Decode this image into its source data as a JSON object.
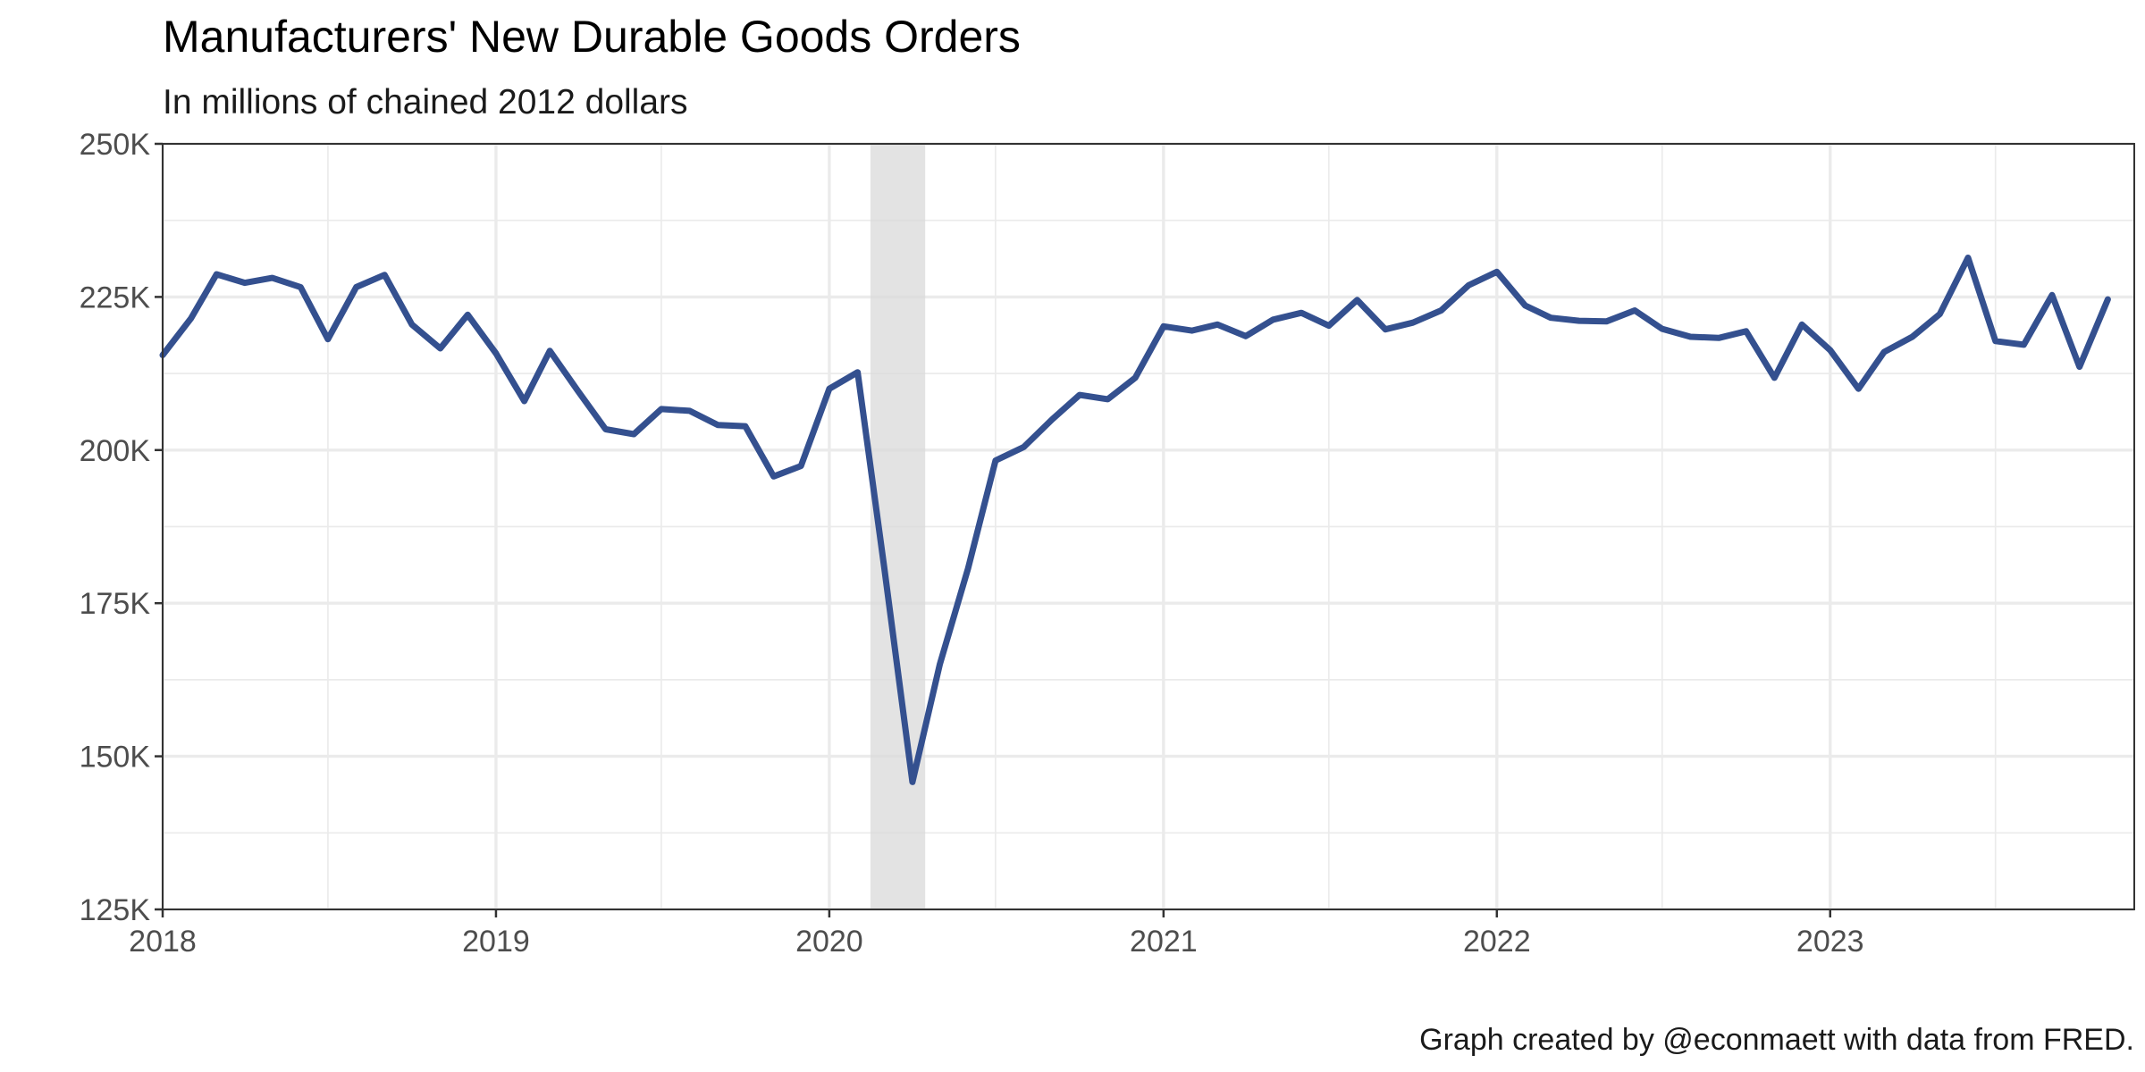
{
  "chart_data": {
    "type": "line",
    "title": "Manufacturers' New Durable Goods Orders",
    "subtitle": "In millions of chained 2012 dollars",
    "caption": "Graph created by @econmaett with data from FRED.",
    "xlabel": "",
    "ylabel": "",
    "x_range": [
      "2018-01-01",
      "2023-11-30"
    ],
    "x_ticks": [
      {
        "date": "2018-01-01",
        "label": "2018"
      },
      {
        "date": "2019-01-01",
        "label": "2019"
      },
      {
        "date": "2020-01-01",
        "label": "2020"
      },
      {
        "date": "2021-01-01",
        "label": "2021"
      },
      {
        "date": "2022-01-01",
        "label": "2022"
      },
      {
        "date": "2023-01-01",
        "label": "2023"
      }
    ],
    "x_minor_ticks": [
      "2018-07-01",
      "2019-07-01",
      "2020-07-01",
      "2021-07-01",
      "2022-07-01",
      "2023-07-01"
    ],
    "y_range": [
      125000,
      250000
    ],
    "y_ticks": [
      {
        "value": 125000,
        "label": "125K"
      },
      {
        "value": 150000,
        "label": "150K"
      },
      {
        "value": 175000,
        "label": "175K"
      },
      {
        "value": 200000,
        "label": "200K"
      },
      {
        "value": 225000,
        "label": "225K"
      },
      {
        "value": 250000,
        "label": "250K"
      }
    ],
    "y_minor_ticks": [
      137500,
      162500,
      187500,
      212500,
      237500
    ],
    "grid": true,
    "recession": {
      "start": "2020-02-15",
      "end": "2020-04-15"
    },
    "series": [
      {
        "color": "#34508f",
        "points": [
          [
            "2018-01-01",
            215500
          ],
          [
            "2018-02-01",
            221500
          ],
          [
            "2018-03-01",
            228700
          ],
          [
            "2018-04-01",
            227300
          ],
          [
            "2018-05-01",
            228100
          ],
          [
            "2018-06-01",
            226600
          ],
          [
            "2018-07-01",
            218100
          ],
          [
            "2018-08-01",
            226600
          ],
          [
            "2018-09-01",
            228600
          ],
          [
            "2018-10-01",
            220500
          ],
          [
            "2018-11-01",
            216600
          ],
          [
            "2018-12-01",
            222100
          ],
          [
            "2019-01-01",
            215800
          ],
          [
            "2019-02-01",
            208000
          ],
          [
            "2019-03-01",
            216200
          ],
          [
            "2019-04-01",
            209600
          ],
          [
            "2019-05-01",
            203400
          ],
          [
            "2019-06-01",
            202600
          ],
          [
            "2019-07-01",
            206700
          ],
          [
            "2019-08-01",
            206400
          ],
          [
            "2019-09-01",
            204100
          ],
          [
            "2019-10-01",
            203900
          ],
          [
            "2019-11-01",
            195700
          ],
          [
            "2019-12-01",
            197400
          ],
          [
            "2020-01-01",
            210000
          ],
          [
            "2020-02-01",
            212700
          ],
          [
            "2020-03-01",
            181000
          ],
          [
            "2020-04-01",
            145800
          ],
          [
            "2020-05-01",
            165000
          ],
          [
            "2020-06-01",
            180700
          ],
          [
            "2020-07-01",
            198300
          ],
          [
            "2020-08-01",
            200500
          ],
          [
            "2020-09-01",
            205000
          ],
          [
            "2020-10-01",
            209000
          ],
          [
            "2020-11-01",
            208300
          ],
          [
            "2020-12-01",
            211800
          ],
          [
            "2021-01-01",
            220200
          ],
          [
            "2021-02-01",
            219500
          ],
          [
            "2021-03-01",
            220500
          ],
          [
            "2021-04-01",
            218600
          ],
          [
            "2021-05-01",
            221300
          ],
          [
            "2021-06-01",
            222400
          ],
          [
            "2021-07-01",
            220300
          ],
          [
            "2021-08-01",
            224500
          ],
          [
            "2021-09-01",
            219700
          ],
          [
            "2021-10-01",
            220800
          ],
          [
            "2021-11-01",
            222800
          ],
          [
            "2021-12-01",
            226900
          ],
          [
            "2022-01-01",
            229100
          ],
          [
            "2022-02-01",
            223600
          ],
          [
            "2022-03-01",
            221600
          ],
          [
            "2022-04-01",
            221100
          ],
          [
            "2022-05-01",
            221000
          ],
          [
            "2022-06-01",
            222800
          ],
          [
            "2022-07-01",
            219800
          ],
          [
            "2022-08-01",
            218500
          ],
          [
            "2022-09-01",
            218300
          ],
          [
            "2022-10-01",
            219400
          ],
          [
            "2022-11-01",
            211800
          ],
          [
            "2022-12-01",
            220500
          ],
          [
            "2023-01-01",
            216300
          ],
          [
            "2023-02-01",
            210000
          ],
          [
            "2023-03-01",
            216000
          ],
          [
            "2023-04-01",
            218500
          ],
          [
            "2023-05-01",
            222200
          ],
          [
            "2023-06-01",
            231400
          ],
          [
            "2023-07-01",
            217800
          ],
          [
            "2023-08-01",
            217200
          ],
          [
            "2023-09-01",
            225300
          ],
          [
            "2023-10-01",
            213600
          ],
          [
            "2023-11-01",
            224600
          ]
        ]
      }
    ]
  }
}
